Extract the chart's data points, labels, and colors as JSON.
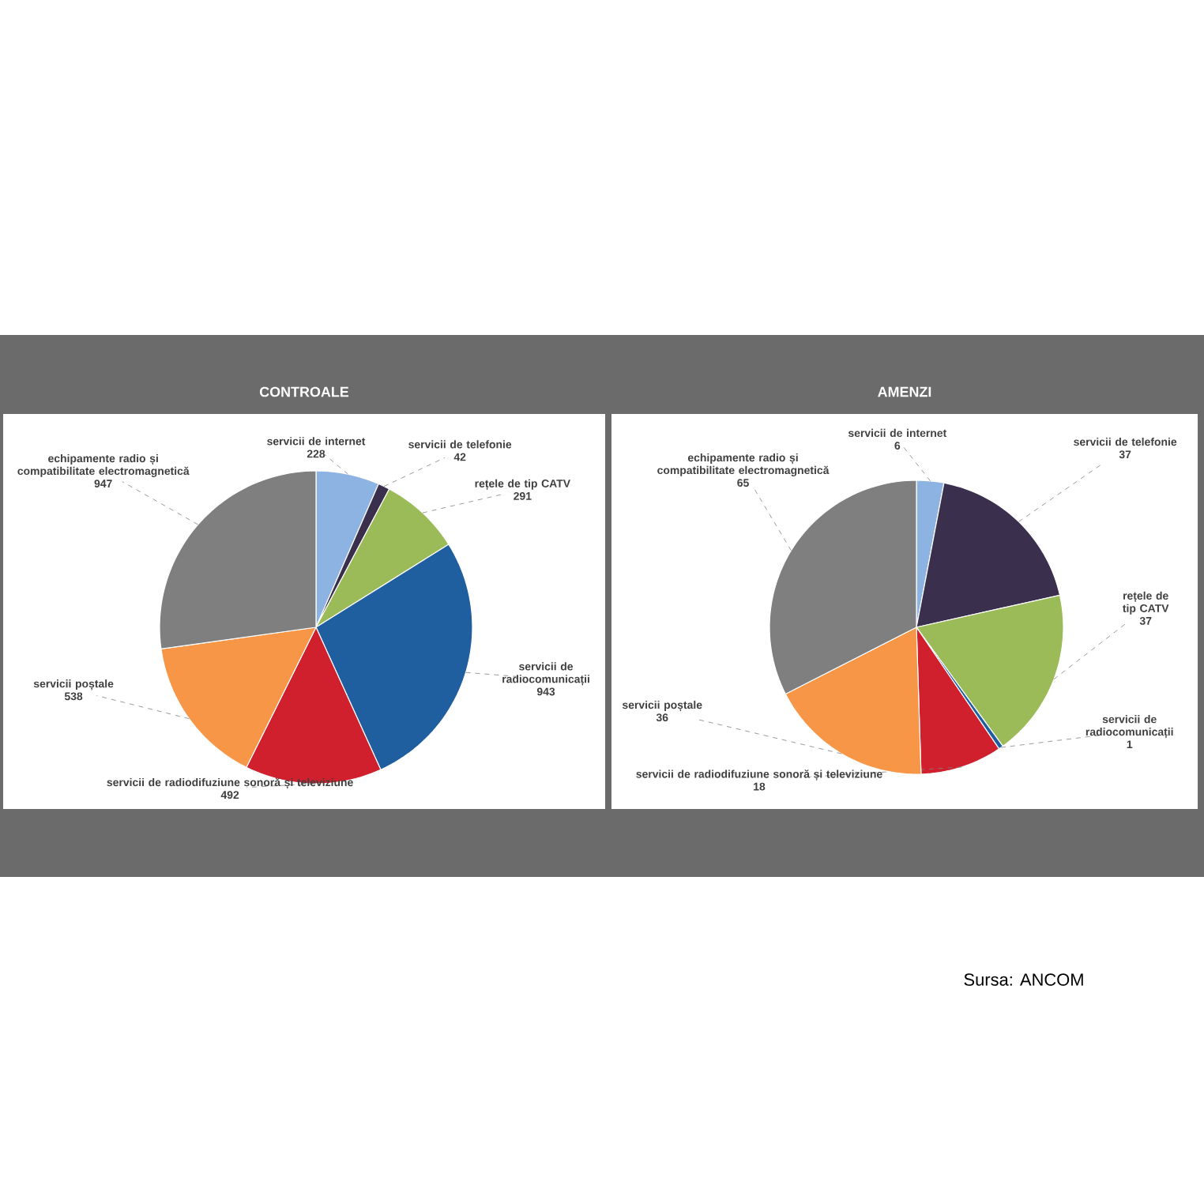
{
  "chart_data": [
    {
      "type": "pie",
      "title": "CONTROALE",
      "data_labels": true,
      "categories": [
        "servicii de internet",
        "servicii de telefonie",
        "rețele de tip CATV",
        "servicii de radiocomunicații",
        "servicii de radiodifuziune sonoră și televiziune",
        "servicii poștale",
        "echipamente radio și compatibilitate electromagnetică"
      ],
      "values": [
        228,
        42,
        291,
        943,
        492,
        538,
        947
      ],
      "colors": [
        "#8db3e2",
        "#3b2f4e",
        "#9bbb59",
        "#1f5fa0",
        "#d0202e",
        "#f79646",
        "#7f7f7f"
      ]
    },
    {
      "type": "pie",
      "title": "AMENZI",
      "data_labels": true,
      "categories": [
        "servicii de internet",
        "servicii de telefonie",
        "rețele de tip CATV",
        "servicii de radiocomunicații",
        "servicii de radiodifuziune sonoră și televiziune",
        "servicii poștale",
        "echipamente radio și compatibilitate electromagnetică"
      ],
      "values": [
        6,
        37,
        37,
        1,
        18,
        36,
        65
      ],
      "colors": [
        "#8db3e2",
        "#3b2f4e",
        "#9bbb59",
        "#1f5fa0",
        "#d0202e",
        "#f79646",
        "#7f7f7f"
      ],
      "annotations": [
        "Sursa: ANCOM"
      ]
    }
  ]
}
